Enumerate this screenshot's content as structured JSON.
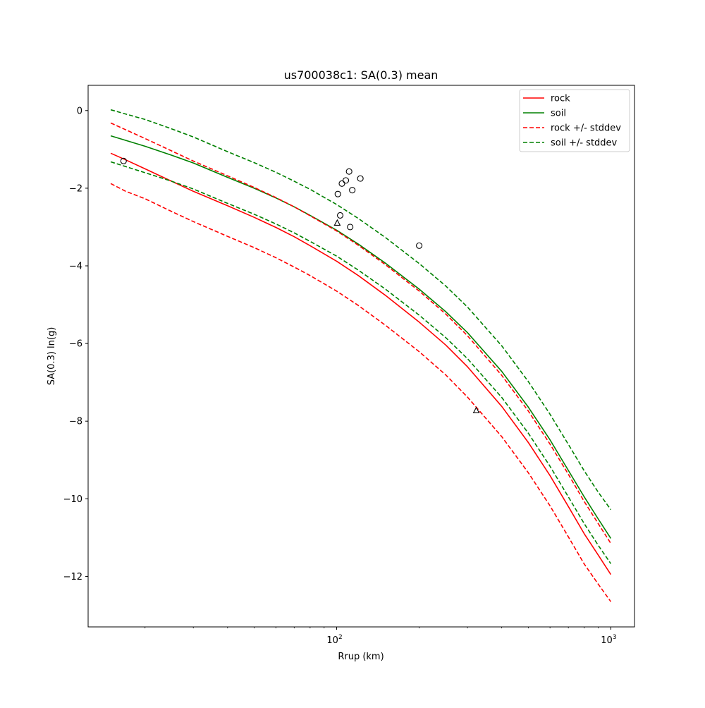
{
  "chart_data": {
    "type": "line",
    "title": "us700038c1: SA(0.3) mean",
    "xlabel": "Rrup (km)",
    "ylabel": "SA(0.3) ln(g)",
    "xscale": "log",
    "xlim": [
      12.4,
      1220
    ],
    "ylim": [
      -13.3,
      0.65
    ],
    "x_ticks_major": [
      {
        "value": 100,
        "base": "10",
        "exp": "2"
      },
      {
        "value": 1000,
        "base": "10",
        "exp": "3"
      }
    ],
    "y_ticks": [
      "0",
      "−2",
      "−4",
      "−6",
      "−8",
      "−10",
      "−12"
    ],
    "y_tick_values": [
      0,
      -2,
      -4,
      -6,
      -8,
      -10,
      -12
    ],
    "grid": false,
    "legend_position": "top-right",
    "colors": {
      "rock": "#ff0000",
      "soil": "#008000",
      "markers": "#000000"
    },
    "series": [
      {
        "name": "rock",
        "color": "#ff0000",
        "style": "solid",
        "points": [
          [
            15,
            -1.1
          ],
          [
            17,
            -1.27
          ],
          [
            20,
            -1.5
          ],
          [
            25,
            -1.82
          ],
          [
            30,
            -2.08
          ],
          [
            40,
            -2.45
          ],
          [
            50,
            -2.75
          ],
          [
            60,
            -3.01
          ],
          [
            70,
            -3.25
          ],
          [
            80,
            -3.48
          ],
          [
            100,
            -3.88
          ],
          [
            120,
            -4.25
          ],
          [
            150,
            -4.75
          ],
          [
            200,
            -5.45
          ],
          [
            250,
            -6.04
          ],
          [
            300,
            -6.6
          ],
          [
            400,
            -7.62
          ],
          [
            500,
            -8.55
          ],
          [
            600,
            -9.4
          ],
          [
            700,
            -10.2
          ],
          [
            800,
            -10.9
          ],
          [
            900,
            -11.45
          ],
          [
            1000,
            -11.95
          ]
        ]
      },
      {
        "name": "soil",
        "color": "#008000",
        "style": "solid",
        "points": [
          [
            15,
            -0.65
          ],
          [
            20,
            -0.92
          ],
          [
            25,
            -1.15
          ],
          [
            30,
            -1.35
          ],
          [
            40,
            -1.72
          ],
          [
            50,
            -2.0
          ],
          [
            60,
            -2.25
          ],
          [
            70,
            -2.48
          ],
          [
            80,
            -2.7
          ],
          [
            100,
            -3.08
          ],
          [
            120,
            -3.44
          ],
          [
            150,
            -3.92
          ],
          [
            200,
            -4.6
          ],
          [
            250,
            -5.18
          ],
          [
            300,
            -5.72
          ],
          [
            400,
            -6.72
          ],
          [
            500,
            -7.64
          ],
          [
            600,
            -8.48
          ],
          [
            700,
            -9.27
          ],
          [
            800,
            -9.95
          ],
          [
            900,
            -10.52
          ],
          [
            1000,
            -11.02
          ]
        ]
      },
      {
        "name": "rock +/- stddev",
        "color": "#ff0000",
        "style": "dashed",
        "points": [
          [
            15,
            -0.32
          ],
          [
            20,
            -0.72
          ],
          [
            25,
            -1.04
          ],
          [
            30,
            -1.3
          ],
          [
            40,
            -1.68
          ],
          [
            50,
            -1.98
          ],
          [
            60,
            -2.24
          ],
          [
            70,
            -2.48
          ],
          [
            80,
            -2.71
          ],
          [
            100,
            -3.1
          ],
          [
            120,
            -3.47
          ],
          [
            150,
            -3.96
          ],
          [
            200,
            -4.65
          ],
          [
            250,
            -5.24
          ],
          [
            300,
            -5.8
          ],
          [
            400,
            -6.82
          ],
          [
            500,
            -7.74
          ],
          [
            600,
            -8.59
          ],
          [
            700,
            -9.37
          ],
          [
            800,
            -10.07
          ],
          [
            900,
            -10.64
          ],
          [
            1000,
            -11.15
          ]
        ]
      },
      {
        "name": "",
        "color": "#ff0000",
        "style": "dashed",
        "points": [
          [
            15,
            -1.88
          ],
          [
            17,
            -2.08
          ],
          [
            20,
            -2.27
          ],
          [
            25,
            -2.6
          ],
          [
            30,
            -2.86
          ],
          [
            40,
            -3.24
          ],
          [
            50,
            -3.53
          ],
          [
            60,
            -3.79
          ],
          [
            70,
            -4.03
          ],
          [
            80,
            -4.25
          ],
          [
            100,
            -4.65
          ],
          [
            120,
            -5.02
          ],
          [
            150,
            -5.52
          ],
          [
            200,
            -6.21
          ],
          [
            250,
            -6.81
          ],
          [
            300,
            -7.38
          ],
          [
            400,
            -8.4
          ],
          [
            500,
            -9.33
          ],
          [
            600,
            -10.18
          ],
          [
            700,
            -10.98
          ],
          [
            800,
            -11.68
          ],
          [
            900,
            -12.2
          ],
          [
            1000,
            -12.65
          ]
        ]
      },
      {
        "name": "soil +/- stddev",
        "color": "#008000",
        "style": "dashed",
        "points": [
          [
            15,
            0.02
          ],
          [
            20,
            -0.23
          ],
          [
            25,
            -0.47
          ],
          [
            30,
            -0.68
          ],
          [
            40,
            -1.06
          ],
          [
            50,
            -1.34
          ],
          [
            60,
            -1.59
          ],
          [
            70,
            -1.82
          ],
          [
            80,
            -2.03
          ],
          [
            100,
            -2.42
          ],
          [
            120,
            -2.78
          ],
          [
            150,
            -3.26
          ],
          [
            200,
            -3.94
          ],
          [
            250,
            -4.52
          ],
          [
            300,
            -5.06
          ],
          [
            400,
            -6.06
          ],
          [
            500,
            -6.98
          ],
          [
            600,
            -7.82
          ],
          [
            700,
            -8.6
          ],
          [
            800,
            -9.28
          ],
          [
            900,
            -9.83
          ],
          [
            1000,
            -10.28
          ]
        ]
      },
      {
        "name": "",
        "color": "#008000",
        "style": "dashed",
        "points": [
          [
            15,
            -1.32
          ],
          [
            20,
            -1.6
          ],
          [
            25,
            -1.82
          ],
          [
            30,
            -2.02
          ],
          [
            40,
            -2.39
          ],
          [
            50,
            -2.67
          ],
          [
            60,
            -2.92
          ],
          [
            70,
            -3.15
          ],
          [
            80,
            -3.37
          ],
          [
            100,
            -3.75
          ],
          [
            120,
            -4.11
          ],
          [
            150,
            -4.59
          ],
          [
            200,
            -5.27
          ],
          [
            250,
            -5.85
          ],
          [
            300,
            -6.39
          ],
          [
            400,
            -7.39
          ],
          [
            500,
            -8.31
          ],
          [
            600,
            -9.16
          ],
          [
            700,
            -9.95
          ],
          [
            800,
            -10.64
          ],
          [
            900,
            -11.2
          ],
          [
            1000,
            -11.67
          ]
        ]
      }
    ],
    "observations": [
      {
        "marker": "circle",
        "points": [
          [
            16.7,
            -1.3
          ],
          [
            101,
            -2.15
          ],
          [
            103,
            -2.7
          ],
          [
            104.5,
            -1.88
          ],
          [
            108,
            -1.8
          ],
          [
            111,
            -1.57
          ],
          [
            112,
            -3.0
          ],
          [
            114,
            -2.05
          ],
          [
            122,
            -1.75
          ],
          [
            200,
            -3.48
          ]
        ]
      },
      {
        "marker": "triangle",
        "points": [
          [
            100.5,
            -2.9
          ],
          [
            323,
            -7.73
          ]
        ]
      }
    ]
  }
}
